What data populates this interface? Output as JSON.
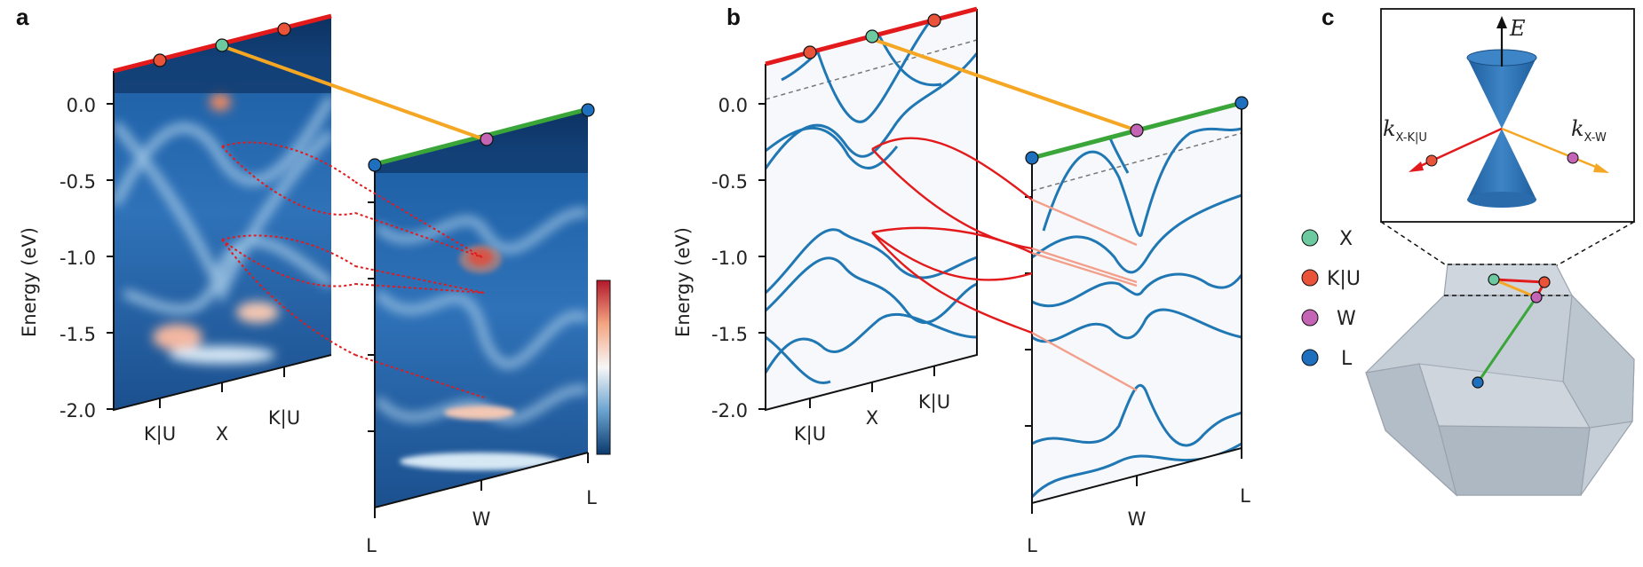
{
  "panel_labels": {
    "a": "a",
    "b": "b",
    "c": "c"
  },
  "axis": {
    "ylabel": "Energy (eV)",
    "yticks": [
      "0.0",
      "-0.5",
      "-1.0",
      "-1.5",
      "-2.0"
    ],
    "left_xticks": [
      "K|U",
      "X",
      "K|U"
    ],
    "right_xticks": [
      "L",
      "W",
      "L"
    ]
  },
  "inset": {
    "energy_label": "E",
    "k_left_main": "k",
    "k_left_sub": "X-K|U",
    "k_right_main": "k",
    "k_right_sub": "X-W"
  },
  "legend": [
    {
      "label": "X",
      "color": "#6cc9a0"
    },
    {
      "label": "K|U",
      "color": "#e8533a"
    },
    {
      "label": "W",
      "color": "#c364b5"
    },
    {
      "label": "L",
      "color": "#1f6fbf"
    }
  ],
  "colors": {
    "path_k": "#e31a1c",
    "path_xw": "#f5a623",
    "path_wl": "#3aa63a",
    "band": "#1f77b4",
    "connector": "#e31a1c",
    "colorbar_top": "#b2182b",
    "colorbar_bottom": "#0b3a6e"
  }
}
